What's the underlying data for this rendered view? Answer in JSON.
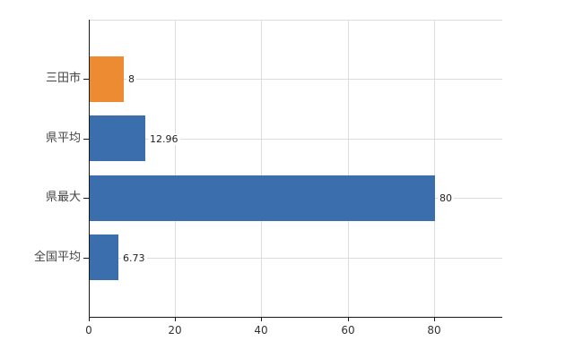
{
  "chart_data": {
    "type": "bar",
    "orientation": "horizontal",
    "title": "",
    "xlabel": "",
    "ylabel": "",
    "categories": [
      "三田市",
      "県平均",
      "県最大",
      "全国平均"
    ],
    "values": [
      8,
      12.96,
      80,
      6.73
    ],
    "value_labels": [
      "8",
      "12.96",
      "80",
      "6.73"
    ],
    "bar_colors": [
      "#ED8B33",
      "#3B6EAD",
      "#3B6EAD",
      "#3B6EAD"
    ],
    "x_ticks": [
      0,
      20,
      40,
      60,
      80
    ],
    "x_tick_labels": [
      "0",
      "20",
      "40",
      "60",
      "80"
    ],
    "xlim": [
      0,
      95.8
    ],
    "grid": true,
    "legend": false
  },
  "colors": {
    "bar_orange": "#ED8B33",
    "bar_blue": "#3B6EAD",
    "gridline": "#DDDDDD",
    "axis": "#1A1A1A",
    "category_text": "#444444",
    "tick_text": "#333333",
    "value_text": "#222222",
    "background": "#FFFFFF"
  }
}
